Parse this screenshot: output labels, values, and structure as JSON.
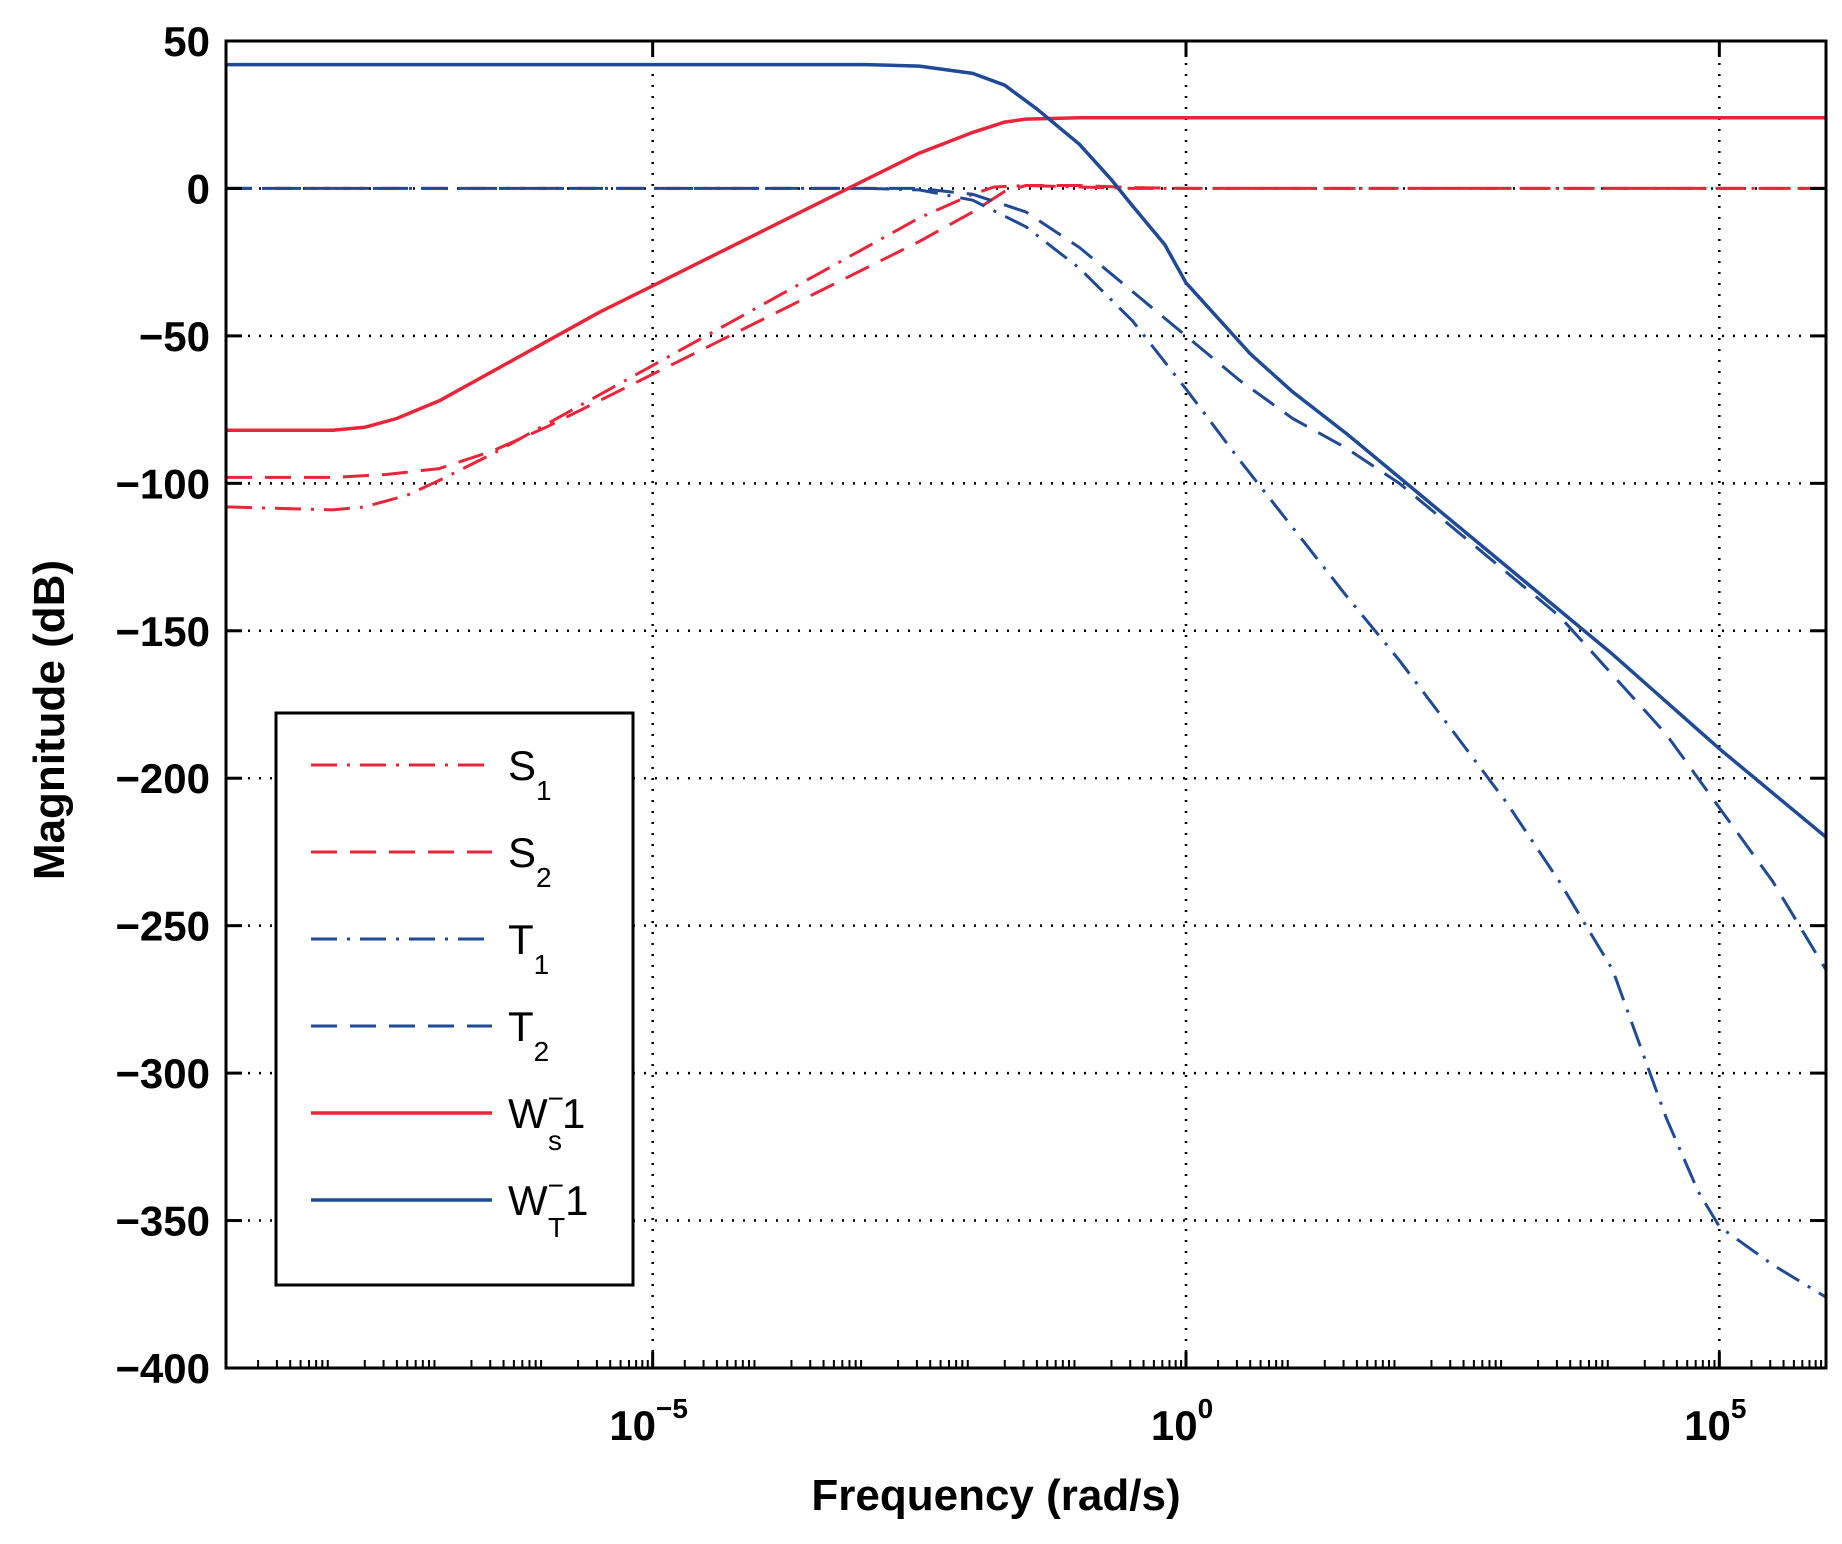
{
  "chart_data": {
    "type": "line",
    "xscale": "log",
    "xlabel": "Frequency (rad/s)",
    "ylabel": "Magnitude (dB)",
    "xlim_log10": [
      -9,
      6
    ],
    "ylim": [
      -400,
      50
    ],
    "grid": true,
    "legend_position": "lower-left",
    "x_ticks": [
      {
        "base": "10",
        "exp": "−5",
        "value_log10": -5
      },
      {
        "base": "10",
        "exp": "0",
        "value_log10": 0
      },
      {
        "base": "10",
        "exp": "5",
        "value_log10": 5
      }
    ],
    "y_ticks": [
      {
        "label": "50",
        "value": 50
      },
      {
        "label": "0",
        "value": 0
      },
      {
        "label": "−50",
        "value": -50
      },
      {
        "label": "−100",
        "value": -100
      },
      {
        "label": "−150",
        "value": -150
      },
      {
        "label": "−200",
        "value": -200
      },
      {
        "label": "−250",
        "value": -250
      },
      {
        "label": "−300",
        "value": -300
      },
      {
        "label": "−350",
        "value": -350
      },
      {
        "label": "−400",
        "value": -400
      }
    ],
    "series": [
      {
        "name": "S1",
        "label_main": "S",
        "label_sub": "1",
        "label_sup": "",
        "label_tail": "",
        "color": "#e8263a",
        "dash": "dashdot",
        "points": [
          [
            -9,
            -108
          ],
          [
            -8,
            -109
          ],
          [
            -7.7,
            -108
          ],
          [
            -7.3,
            -104
          ],
          [
            -7,
            -99
          ],
          [
            -6.5,
            -90
          ],
          [
            -6,
            -80
          ],
          [
            -5.5,
            -70
          ],
          [
            -5,
            -60
          ],
          [
            -4.5,
            -50
          ],
          [
            -4,
            -40
          ],
          [
            -3.5,
            -30
          ],
          [
            -3,
            -20
          ],
          [
            -2.5,
            -10
          ],
          [
            -2,
            -2
          ],
          [
            -1.8,
            0.5
          ],
          [
            -1.5,
            1
          ],
          [
            -1,
            0.5
          ],
          [
            -0.5,
            0
          ],
          [
            0,
            0
          ],
          [
            6,
            0
          ]
        ]
      },
      {
        "name": "S2",
        "label_main": "S",
        "label_sub": "2",
        "label_sup": "",
        "label_tail": "",
        "color": "#e8263a",
        "dash": "dashed",
        "points": [
          [
            -9,
            -98
          ],
          [
            -8,
            -98
          ],
          [
            -7.5,
            -97
          ],
          [
            -7,
            -95
          ],
          [
            -6.5,
            -89
          ],
          [
            -6,
            -81
          ],
          [
            -5.5,
            -72
          ],
          [
            -5,
            -63
          ],
          [
            -4.5,
            -54
          ],
          [
            -4,
            -45
          ],
          [
            -3.5,
            -36
          ],
          [
            -3,
            -27
          ],
          [
            -2.5,
            -18
          ],
          [
            -2,
            -8
          ],
          [
            -1.7,
            -1
          ],
          [
            -1.5,
            1
          ],
          [
            -1,
            1
          ],
          [
            -0.5,
            0.3
          ],
          [
            0,
            0
          ],
          [
            6,
            0
          ]
        ]
      },
      {
        "name": "T1",
        "label_main": "T",
        "label_sub": "1",
        "label_sup": "",
        "label_tail": "",
        "color": "#1f4a96",
        "dash": "dashdot",
        "points": [
          [
            -9,
            0
          ],
          [
            -3,
            0
          ],
          [
            -2.5,
            -0.5
          ],
          [
            -2,
            -4
          ],
          [
            -1.5,
            -13
          ],
          [
            -1,
            -27
          ],
          [
            -0.5,
            -45
          ],
          [
            0,
            -68
          ],
          [
            0.5,
            -92
          ],
          [
            1,
            -115
          ],
          [
            1.5,
            -138
          ],
          [
            2,
            -160
          ],
          [
            2.5,
            -184
          ],
          [
            3,
            -208
          ],
          [
            3.5,
            -235
          ],
          [
            4,
            -265
          ],
          [
            4.2,
            -285
          ],
          [
            4.5,
            -315
          ],
          [
            4.8,
            -340
          ],
          [
            5,
            -352
          ],
          [
            5.5,
            -365
          ],
          [
            6,
            -376
          ]
        ]
      },
      {
        "name": "T2",
        "label_main": "T",
        "label_sub": "2",
        "label_sup": "",
        "label_tail": "",
        "color": "#1f4a96",
        "dash": "dashed",
        "points": [
          [
            -9,
            0
          ],
          [
            -2.5,
            0
          ],
          [
            -2,
            -2
          ],
          [
            -1.5,
            -8
          ],
          [
            -1,
            -20
          ],
          [
            -0.5,
            -35
          ],
          [
            0,
            -50
          ],
          [
            0.5,
            -65
          ],
          [
            1,
            -78
          ],
          [
            1.5,
            -88
          ],
          [
            2,
            -100
          ],
          [
            2.5,
            -115
          ],
          [
            3,
            -130
          ],
          [
            3.5,
            -145
          ],
          [
            4,
            -165
          ],
          [
            4.5,
            -185
          ],
          [
            5,
            -210
          ],
          [
            5.5,
            -235
          ],
          [
            6,
            -265
          ]
        ]
      },
      {
        "name": "Ws^-1",
        "label_main": "W",
        "label_sub": "s",
        "label_sup": "−",
        "label_tail": "1",
        "color": "#e8263a",
        "dash": "solid",
        "points": [
          [
            -9,
            -82
          ],
          [
            -8,
            -82
          ],
          [
            -7.7,
            -81
          ],
          [
            -7.4,
            -78
          ],
          [
            -7,
            -72
          ],
          [
            -6.5,
            -62
          ],
          [
            -6,
            -52
          ],
          [
            -5.5,
            -42
          ],
          [
            -5,
            -33
          ],
          [
            -4.5,
            -24
          ],
          [
            -4,
            -15
          ],
          [
            -3.5,
            -6
          ],
          [
            -3,
            3
          ],
          [
            -2.5,
            12
          ],
          [
            -2,
            19
          ],
          [
            -1.7,
            22.5
          ],
          [
            -1.5,
            23.5
          ],
          [
            -1,
            24
          ],
          [
            6,
            24
          ]
        ]
      },
      {
        "name": "WT^-1",
        "label_main": "W",
        "label_sub": "T",
        "label_sup": "−",
        "label_tail": "1",
        "color": "#1f4a96",
        "dash": "solid",
        "points": [
          [
            -9,
            42
          ],
          [
            -3,
            42
          ],
          [
            -2.5,
            41.5
          ],
          [
            -2,
            39
          ],
          [
            -1.7,
            35
          ],
          [
            -1.4,
            27
          ],
          [
            -1,
            15
          ],
          [
            -0.7,
            3
          ],
          [
            -0.5,
            -6
          ],
          [
            -0.2,
            -19
          ],
          [
            0,
            -32
          ],
          [
            0.3,
            -44
          ],
          [
            0.6,
            -56
          ],
          [
            1,
            -69
          ],
          [
            1.5,
            -83
          ],
          [
            2,
            -98
          ],
          [
            2.5,
            -113
          ],
          [
            3,
            -128
          ],
          [
            3.5,
            -143
          ],
          [
            4,
            -158
          ],
          [
            4.5,
            -174
          ],
          [
            5,
            -190
          ],
          [
            5.5,
            -205
          ],
          [
            6,
            -220
          ]
        ]
      }
    ]
  }
}
